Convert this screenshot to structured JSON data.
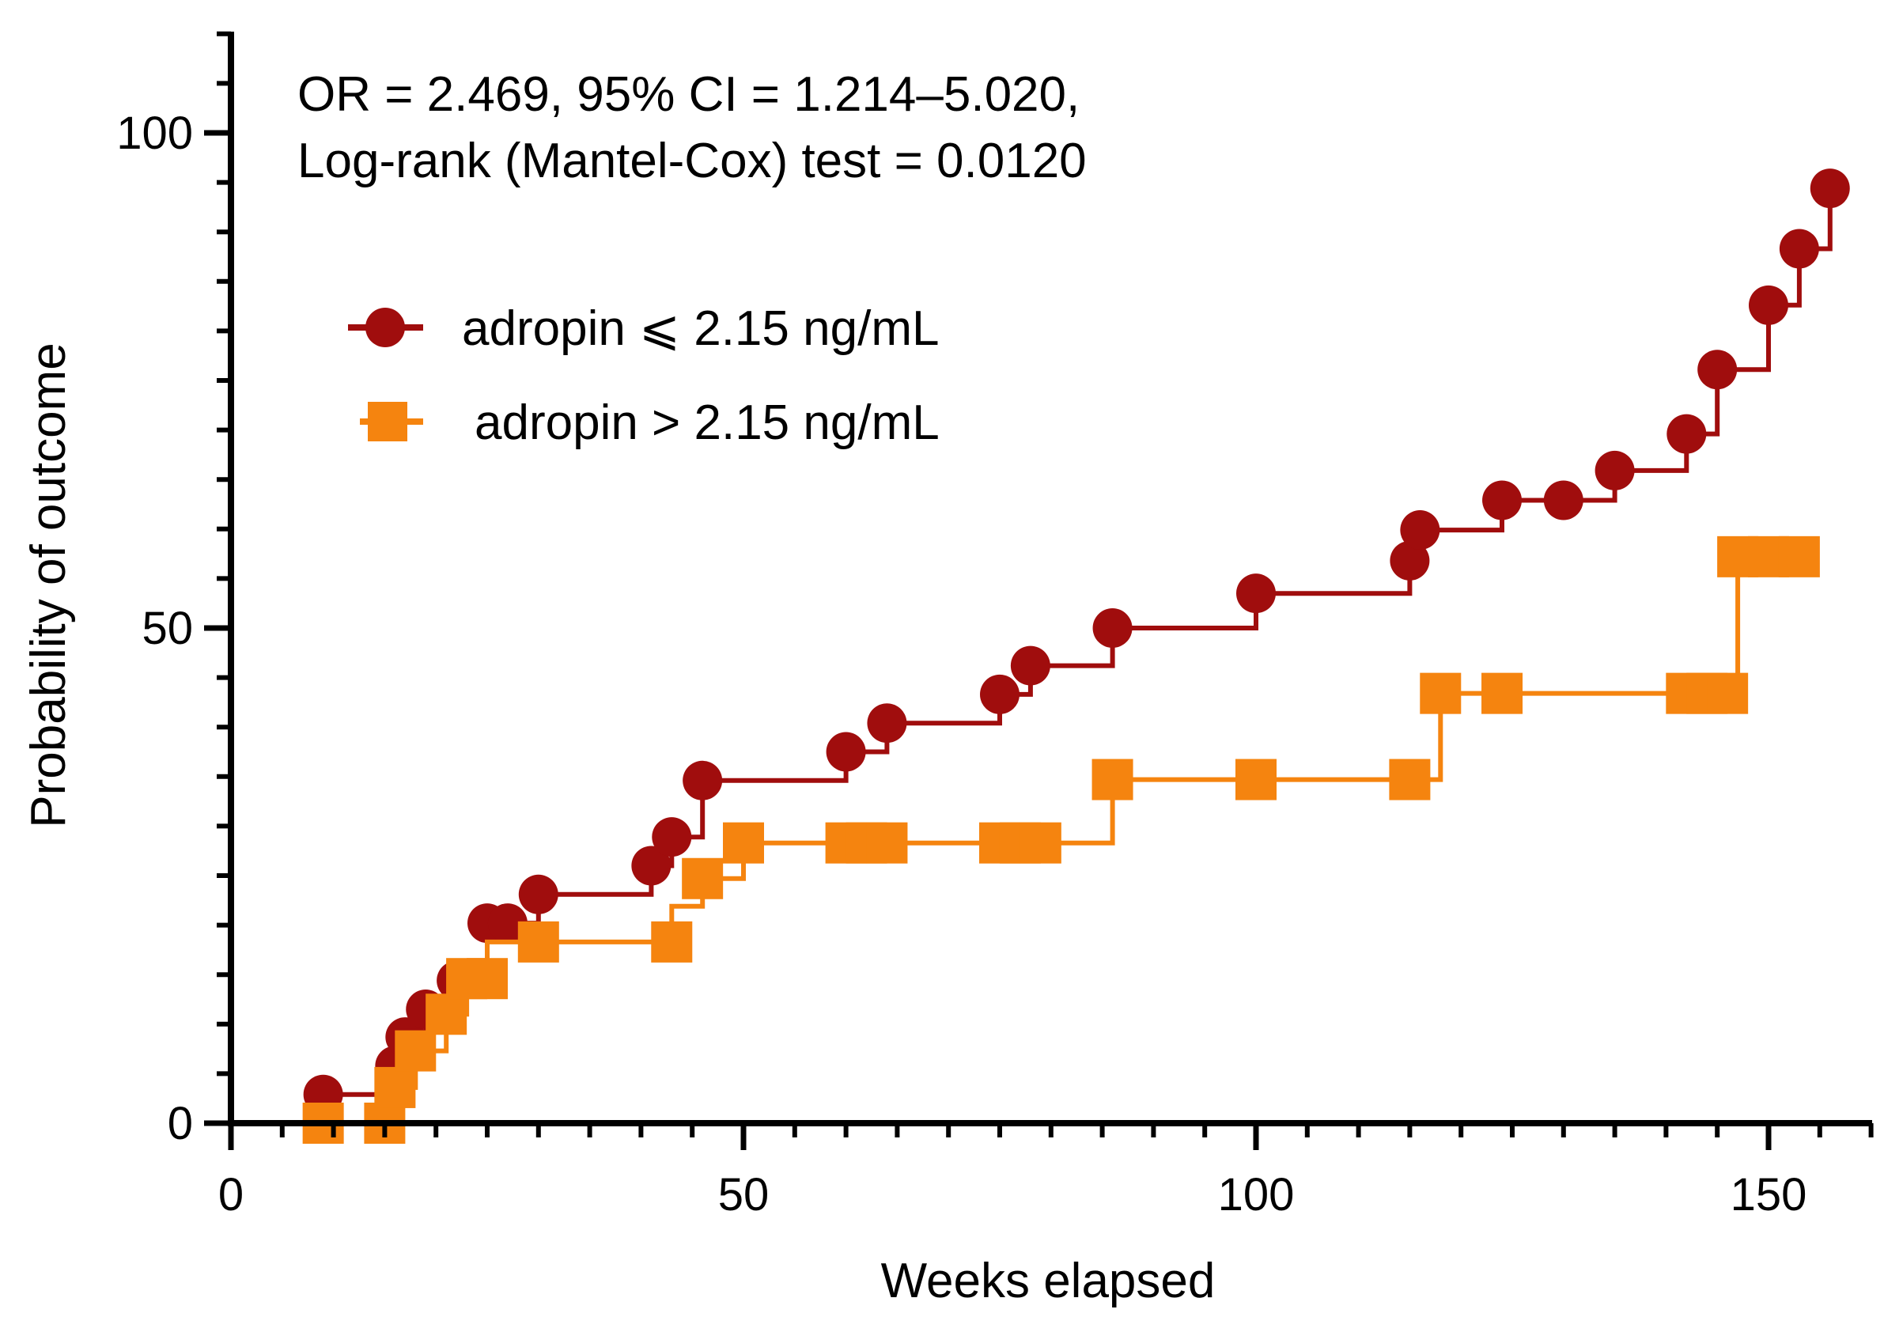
{
  "chart_data": {
    "type": "line",
    "title": "",
    "xlabel": "Weeks elapsed",
    "ylabel": "Probability of outcome",
    "xlim": [
      0,
      160
    ],
    "ylim": [
      0,
      110
    ],
    "xticks": [
      {
        "value": 0,
        "label": "0"
      },
      {
        "value": 50,
        "label": "50"
      },
      {
        "value": 100,
        "label": "100"
      },
      {
        "value": 150,
        "label": "150"
      }
    ],
    "yticks": [
      {
        "value": 0,
        "label": "0"
      },
      {
        "value": 50,
        "label": "50"
      },
      {
        "value": 100,
        "label": "100"
      }
    ],
    "x_minor_step": 5,
    "y_minor_step": 5,
    "grid": false,
    "legend_position": "top-left",
    "annotation": {
      "line1": "OR = 2.469, 95% CI = 1.214–5.020,",
      "line2": "Log-rank (Mantel-Cox) test = 0.0120"
    },
    "series": [
      {
        "name": "adropin ⩽ 2.15 ng/mL",
        "color": "#a00d0d",
        "marker": "circle",
        "step": [
          [
            0,
            0
          ],
          [
            9,
            0
          ],
          [
            9,
            2.9
          ],
          [
            16,
            2.9
          ],
          [
            16,
            5.8
          ],
          [
            17,
            5.8
          ],
          [
            17,
            8.7
          ],
          [
            19,
            8.7
          ],
          [
            19,
            11.5
          ],
          [
            22,
            11.5
          ],
          [
            22,
            14.4
          ],
          [
            25,
            14.4
          ],
          [
            25,
            20.2
          ],
          [
            30,
            20.2
          ],
          [
            30,
            23.1
          ],
          [
            41,
            23.1
          ],
          [
            41,
            26
          ],
          [
            43,
            26
          ],
          [
            43,
            28.9
          ],
          [
            46,
            28.9
          ],
          [
            46,
            34.6
          ],
          [
            60,
            34.6
          ],
          [
            60,
            37.5
          ],
          [
            64,
            37.5
          ],
          [
            64,
            40.4
          ],
          [
            75,
            40.4
          ],
          [
            75,
            43.3
          ],
          [
            78,
            43.3
          ],
          [
            78,
            46.2
          ],
          [
            86,
            46.2
          ],
          [
            86,
            50
          ],
          [
            100,
            50
          ],
          [
            100,
            53.5
          ],
          [
            115,
            53.5
          ],
          [
            115,
            56.8
          ],
          [
            116,
            56.8
          ],
          [
            116,
            59.9
          ],
          [
            124,
            59.9
          ],
          [
            124,
            62.9
          ],
          [
            135,
            62.9
          ],
          [
            135,
            65.9
          ],
          [
            142,
            65.9
          ],
          [
            142,
            69.6
          ],
          [
            145,
            69.6
          ],
          [
            145,
            76.1
          ],
          [
            150,
            76.1
          ],
          [
            150,
            82.6
          ],
          [
            153,
            82.6
          ],
          [
            153,
            88.3
          ],
          [
            156,
            88.3
          ],
          [
            156,
            94.4
          ]
        ],
        "markers": [
          [
            9,
            2.9
          ],
          [
            16,
            5.8
          ],
          [
            17,
            8.7
          ],
          [
            19,
            11.5
          ],
          [
            22,
            14.4
          ],
          [
            25,
            20.2
          ],
          [
            27,
            20.2
          ],
          [
            30,
            23.1
          ],
          [
            41,
            26
          ],
          [
            43,
            28.9
          ],
          [
            46,
            34.6
          ],
          [
            60,
            37.5
          ],
          [
            64,
            40.4
          ],
          [
            75,
            43.3
          ],
          [
            78,
            46.2
          ],
          [
            86,
            50
          ],
          [
            100,
            53.5
          ],
          [
            115,
            56.8
          ],
          [
            116,
            59.9
          ],
          [
            124,
            62.9
          ],
          [
            130,
            62.9
          ],
          [
            135,
            65.9
          ],
          [
            142,
            69.6
          ],
          [
            145,
            76.1
          ],
          [
            150,
            82.6
          ],
          [
            153,
            88.3
          ],
          [
            156,
            94.4
          ]
        ]
      },
      {
        "name": "adropin > 2.15 ng/mL",
        "color": "#f5840f",
        "marker": "square",
        "step": [
          [
            0,
            0
          ],
          [
            15,
            0
          ],
          [
            15,
            3.6
          ],
          [
            18,
            3.6
          ],
          [
            18,
            7.3
          ],
          [
            21,
            7.3
          ],
          [
            21,
            11
          ],
          [
            23,
            11
          ],
          [
            23,
            14.6
          ],
          [
            25,
            14.6
          ],
          [
            25,
            18.3
          ],
          [
            43,
            18.3
          ],
          [
            43,
            21.9
          ],
          [
            46,
            21.9
          ],
          [
            46,
            24.7
          ],
          [
            50,
            24.7
          ],
          [
            50,
            28.3
          ],
          [
            86,
            28.3
          ],
          [
            86,
            34.7
          ],
          [
            118,
            34.7
          ],
          [
            118,
            43.4
          ],
          [
            147,
            43.4
          ],
          [
            147,
            57.2
          ],
          [
            154,
            57.2
          ]
        ],
        "markers": [
          [
            9,
            0
          ],
          [
            15,
            0
          ],
          [
            16,
            3.6
          ],
          [
            18,
            7.3
          ],
          [
            21,
            11
          ],
          [
            23,
            14.6
          ],
          [
            25,
            14.6
          ],
          [
            30,
            18.3
          ],
          [
            43,
            18.3
          ],
          [
            46,
            24.7
          ],
          [
            50,
            28.3
          ],
          [
            60,
            28.3
          ],
          [
            62,
            28.3
          ],
          [
            64,
            28.3
          ],
          [
            75,
            28.3
          ],
          [
            77,
            28.3
          ],
          [
            79,
            28.3
          ],
          [
            86,
            34.7
          ],
          [
            100,
            34.7
          ],
          [
            115,
            34.7
          ],
          [
            118,
            43.4
          ],
          [
            124,
            43.4
          ],
          [
            142,
            43.4
          ],
          [
            144,
            43.4
          ],
          [
            146,
            43.4
          ],
          [
            147,
            57.2
          ],
          [
            150,
            57.2
          ],
          [
            153,
            57.2
          ]
        ]
      }
    ]
  }
}
